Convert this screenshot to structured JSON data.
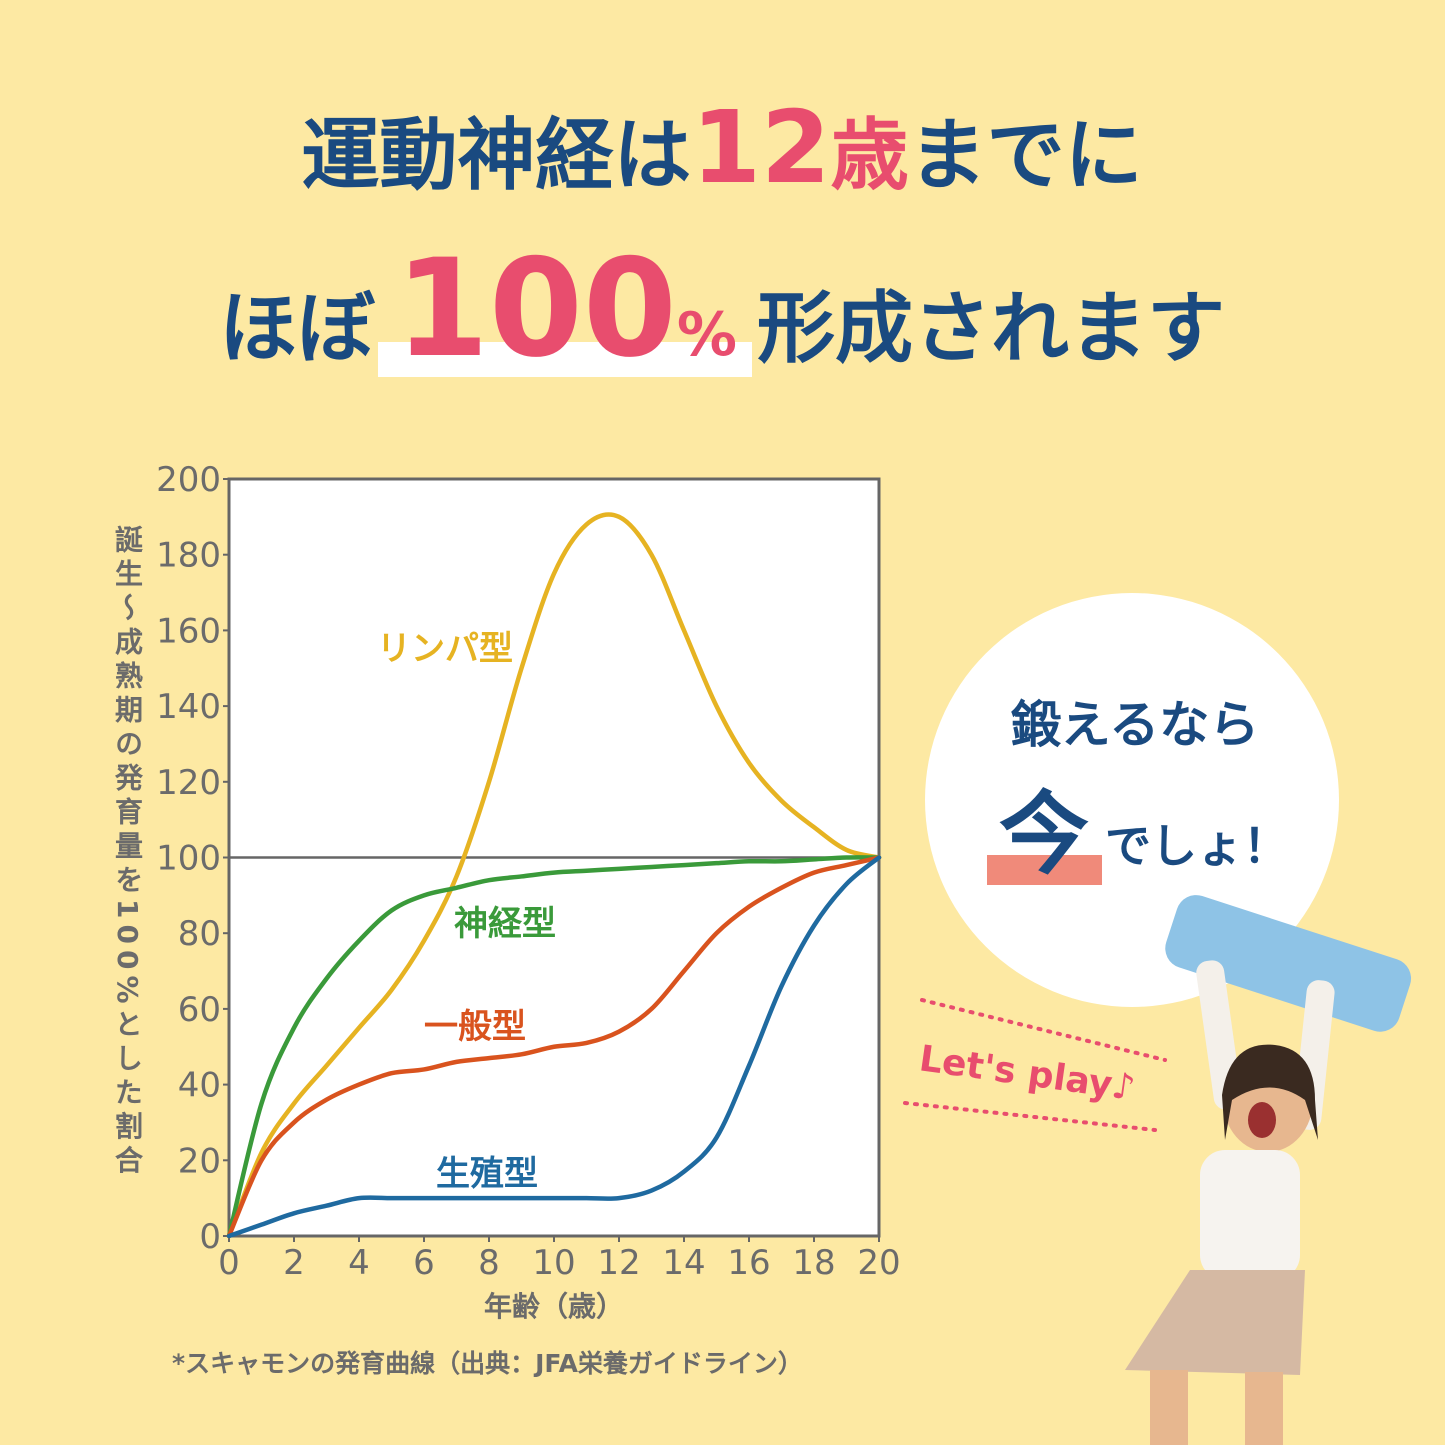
{
  "headline": {
    "part1": "運動神経は",
    "part2": "12",
    "part3": "歳",
    "part4": "までに",
    "part5": "ほぼ",
    "part6": "100",
    "part7": "%",
    "part8": "形成されます"
  },
  "badge": {
    "line1": "鍛えるなら",
    "now": "今",
    "rest": "でしょ！"
  },
  "sticker": "Let's play♪",
  "chart_data": {
    "type": "line",
    "x_label": "年齢（歳）",
    "y_label": "誕生～成熟期の発育量を100%とした割合",
    "source": "*スキャモンの発育曲線（出典：JFA栄養ガイドライン）",
    "x": [
      0,
      1,
      2,
      3,
      4,
      5,
      6,
      7,
      8,
      9,
      10,
      11,
      12,
      13,
      14,
      15,
      16,
      17,
      18,
      19,
      20
    ],
    "series": [
      {
        "name": "リンパ型",
        "color": "#e6b322",
        "values": [
          0,
          22,
          35,
          45,
          55,
          65,
          78,
          95,
          120,
          150,
          175,
          188,
          190,
          180,
          160,
          140,
          125,
          115,
          108,
          102,
          100
        ]
      },
      {
        "name": "神経型",
        "color": "#3a9a3a",
        "values": [
          0,
          35,
          55,
          68,
          78,
          86,
          90,
          92,
          94,
          95,
          96,
          96.5,
          97,
          97.5,
          98,
          98.5,
          99,
          99,
          99.5,
          100,
          100
        ]
      },
      {
        "name": "一般型",
        "color": "#d9531e",
        "values": [
          0,
          20,
          30,
          36,
          40,
          43,
          44,
          46,
          47,
          48,
          50,
          51,
          54,
          60,
          70,
          80,
          87,
          92,
          96,
          98,
          100
        ]
      },
      {
        "name": "生殖型",
        "color": "#1f6aa0",
        "values": [
          0,
          3,
          6,
          8,
          10,
          10,
          10,
          10,
          10,
          10,
          10,
          10,
          10,
          12,
          17,
          26,
          45,
          66,
          82,
          93,
          100
        ]
      }
    ],
    "xlim": [
      0,
      20
    ],
    "xticks": [
      0,
      2,
      4,
      6,
      8,
      10,
      12,
      14,
      16,
      18,
      20
    ],
    "ylim": [
      0,
      200
    ],
    "yticks": [
      0,
      20,
      40,
      60,
      80,
      100,
      120,
      140,
      160,
      180,
      200
    ],
    "reference_line": 100
  }
}
